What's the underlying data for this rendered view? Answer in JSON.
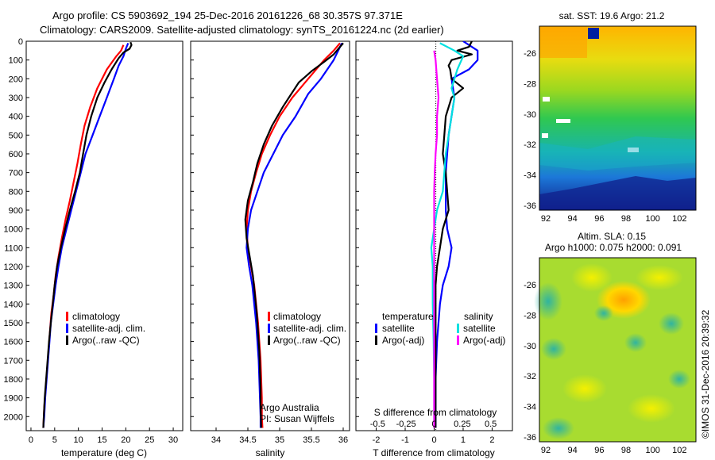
{
  "header": {
    "line1": "Argo profile: CS 5903692_194 25-Dec-2016 20161226_68 30.357S 97.371E",
    "line2": "Climatology: CARS2009. Satellite-adjusted climatology: synTS_20161224.nc (2d earlier)"
  },
  "colors": {
    "climatology": "#ff0000",
    "satellite": "#0000ff",
    "argo": "#000000",
    "salinity_satellite": "#00e0e0",
    "salinity_argo": "#ff00ff"
  },
  "chart_data": [
    {
      "type": "line",
      "name": "temperature",
      "xlabel": "temperature (deg C)",
      "xlim": [
        -1,
        32
      ],
      "xticks": [
        0,
        5,
        10,
        15,
        20,
        25,
        30
      ],
      "ylim": [
        2075,
        0
      ],
      "yticks": [
        0,
        100,
        200,
        300,
        400,
        500,
        600,
        700,
        800,
        900,
        1000,
        1100,
        1200,
        1300,
        1400,
        1500,
        1600,
        1700,
        1800,
        1900,
        2000
      ],
      "legend": [
        "climatology",
        "satellite-adj. clim.",
        "Argo(..raw -QC)"
      ],
      "series": [
        {
          "name": "climatology",
          "color": "climatology",
          "points": [
            [
              19.5,
              20
            ],
            [
              19,
              50
            ],
            [
              18,
              80
            ],
            [
              16,
              150
            ],
            [
              14,
              250
            ],
            [
              12.5,
              350
            ],
            [
              11.3,
              450
            ],
            [
              10.5,
              550
            ],
            [
              9.8,
              650
            ],
            [
              9,
              750
            ],
            [
              8.2,
              850
            ],
            [
              7.3,
              950
            ],
            [
              6.5,
              1050
            ],
            [
              5.8,
              1150
            ],
            [
              5.2,
              1250
            ],
            [
              4.8,
              1350
            ],
            [
              4.3,
              1450
            ],
            [
              4,
              1550
            ],
            [
              3.7,
              1650
            ],
            [
              3.4,
              1750
            ],
            [
              3.1,
              1850
            ],
            [
              2.8,
              1950
            ],
            [
              2.6,
              2060
            ]
          ]
        },
        {
          "name": "satellite-adj. clim.",
          "color": "satellite",
          "points": [
            [
              20.5,
              10
            ],
            [
              20,
              40
            ],
            [
              19.5,
              80
            ],
            [
              18.5,
              130
            ],
            [
              17.5,
              200
            ],
            [
              16,
              300
            ],
            [
              14.5,
              400
            ],
            [
              13,
              500
            ],
            [
              11.5,
              600
            ],
            [
              10.5,
              700
            ],
            [
              9.5,
              800
            ],
            [
              8.5,
              900
            ],
            [
              7.5,
              1000
            ],
            [
              6.5,
              1100
            ],
            [
              5.8,
              1200
            ],
            [
              5.2,
              1300
            ],
            [
              4.7,
              1400
            ],
            [
              4.2,
              1500
            ],
            [
              3.9,
              1600
            ],
            [
              3.6,
              1700
            ],
            [
              3.3,
              1800
            ],
            [
              3,
              1900
            ],
            [
              2.8,
              2000
            ],
            [
              2.6,
              2060
            ]
          ]
        },
        {
          "name": "Argo(..raw -QC)",
          "color": "argo",
          "points": [
            [
              21,
              5
            ],
            [
              21.2,
              20
            ],
            [
              20.8,
              40
            ],
            [
              19.5,
              60
            ],
            [
              18.5,
              90
            ],
            [
              17,
              150
            ],
            [
              15.5,
              220
            ],
            [
              14,
              300
            ],
            [
              12.7,
              400
            ],
            [
              11.7,
              500
            ],
            [
              11,
              600
            ],
            [
              10.3,
              700
            ],
            [
              9.3,
              800
            ],
            [
              8.2,
              900
            ],
            [
              7.2,
              1000
            ],
            [
              6.3,
              1100
            ],
            [
              5.5,
              1200
            ],
            [
              5,
              1300
            ],
            [
              4.6,
              1400
            ],
            [
              4.2,
              1500
            ],
            [
              3.8,
              1600
            ],
            [
              3.5,
              1700
            ],
            [
              3.2,
              1800
            ],
            [
              2.9,
              1900
            ],
            [
              2.7,
              2000
            ],
            [
              2.6,
              2060
            ]
          ]
        }
      ]
    },
    {
      "type": "line",
      "name": "salinity",
      "xlabel": "salinity",
      "xlim": [
        33.6,
        36.1
      ],
      "xticks": [
        34,
        34.5,
        35,
        35.5,
        36
      ],
      "xticklabels": [
        "34",
        "34.5",
        "35",
        "35.5",
        "36"
      ],
      "ylim": [
        2075,
        0
      ],
      "legend": [
        "climatology",
        "satellite-adj. clim.",
        "Argo(..raw -QC)"
      ],
      "annotation": [
        "Argo Australia",
        "PI: Susan Wijffels"
      ],
      "series": [
        {
          "name": "climatology",
          "color": "climatology",
          "points": [
            [
              35.95,
              10
            ],
            [
              35.85,
              50
            ],
            [
              35.7,
              100
            ],
            [
              35.45,
              200
            ],
            [
              35.2,
              300
            ],
            [
              35,
              400
            ],
            [
              34.85,
              500
            ],
            [
              34.72,
              600
            ],
            [
              34.63,
              700
            ],
            [
              34.55,
              800
            ],
            [
              34.5,
              900
            ],
            [
              34.48,
              1000
            ],
            [
              34.5,
              1100
            ],
            [
              34.55,
              1200
            ],
            [
              34.6,
              1300
            ],
            [
              34.63,
              1400
            ],
            [
              34.66,
              1500
            ],
            [
              34.68,
              1600
            ],
            [
              34.7,
              1700
            ],
            [
              34.71,
              1800
            ],
            [
              34.72,
              1900
            ],
            [
              34.72,
              2000
            ],
            [
              34.73,
              2060
            ]
          ]
        },
        {
          "name": "satellite-adj. clim.",
          "color": "satellite",
          "points": [
            [
              35.98,
              10
            ],
            [
              35.95,
              30
            ],
            [
              35.85,
              100
            ],
            [
              35.65,
              200
            ],
            [
              35.45,
              280
            ],
            [
              35.25,
              400
            ],
            [
              35.05,
              500
            ],
            [
              34.9,
              600
            ],
            [
              34.75,
              700
            ],
            [
              34.65,
              800
            ],
            [
              34.55,
              900
            ],
            [
              34.5,
              1000
            ],
            [
              34.48,
              1100
            ],
            [
              34.52,
              1200
            ],
            [
              34.57,
              1300
            ],
            [
              34.6,
              1400
            ],
            [
              34.63,
              1500
            ],
            [
              34.65,
              1600
            ],
            [
              34.67,
              1700
            ],
            [
              34.68,
              1800
            ],
            [
              34.69,
              1900
            ],
            [
              34.7,
              2000
            ],
            [
              34.7,
              2060
            ]
          ]
        },
        {
          "name": "Argo(..raw -QC)",
          "color": "argo",
          "points": [
            [
              36,
              10
            ],
            [
              35.95,
              30
            ],
            [
              35.85,
              70
            ],
            [
              35.7,
              110
            ],
            [
              35.5,
              160
            ],
            [
              35.3,
              220
            ],
            [
              35.05,
              350
            ],
            [
              34.88,
              450
            ],
            [
              34.75,
              550
            ],
            [
              34.65,
              650
            ],
            [
              34.58,
              750
            ],
            [
              34.5,
              850
            ],
            [
              34.46,
              950
            ],
            [
              34.48,
              1050
            ],
            [
              34.53,
              1150
            ],
            [
              34.58,
              1250
            ],
            [
              34.61,
              1350
            ],
            [
              34.64,
              1450
            ],
            [
              34.66,
              1550
            ],
            [
              34.68,
              1650
            ],
            [
              34.69,
              1750
            ],
            [
              34.7,
              1850
            ],
            [
              34.7,
              1950
            ],
            [
              34.71,
              2060
            ]
          ]
        }
      ]
    },
    {
      "type": "line",
      "name": "differences",
      "xlabel": "T difference from climatology",
      "top_label": "S difference from climatology",
      "xlim": [
        -2.7,
        2.7
      ],
      "xticks": [
        -2,
        -1,
        0,
        1,
        2
      ],
      "top_ticks": [
        "-0.5",
        "-0.25",
        "0",
        "0.25",
        "0.5"
      ],
      "ylim": [
        2075,
        0
      ],
      "legend_headers": [
        "temperature",
        "salinity"
      ],
      "legend": [
        "satellite",
        "Argo(-adj)",
        "satellite",
        "Argo(-adj)"
      ],
      "series": [
        {
          "name": "temperature satellite",
          "color": "satellite",
          "points": [
            [
              1,
              0
            ],
            [
              1.5,
              50
            ],
            [
              1.5,
              100
            ],
            [
              1.2,
              150
            ],
            [
              0.6,
              200
            ],
            [
              0.7,
              300
            ],
            [
              0.5,
              500
            ],
            [
              0.4,
              700
            ],
            [
              0.4,
              900
            ],
            [
              0.45,
              1000
            ],
            [
              0.6,
              1100
            ],
            [
              0.5,
              1200
            ],
            [
              0.3,
              1300
            ],
            [
              0.2,
              1400
            ],
            [
              0.1,
              1600
            ],
            [
              0.05,
              1800
            ],
            [
              0.05,
              2000
            ],
            [
              0.05,
              2060
            ]
          ]
        },
        {
          "name": "temperature Argo(-adj)",
          "color": "argo",
          "points": [
            [
              1.3,
              0
            ],
            [
              1.2,
              30
            ],
            [
              0.8,
              50
            ],
            [
              1.3,
              70
            ],
            [
              0.6,
              100
            ],
            [
              0.5,
              130
            ],
            [
              0.55,
              150
            ],
            [
              0.6,
              200
            ],
            [
              1,
              250
            ],
            [
              0.6,
              300
            ],
            [
              0.4,
              400
            ],
            [
              0.35,
              500
            ],
            [
              0.3,
              600
            ],
            [
              0.4,
              700
            ],
            [
              0.45,
              800
            ],
            [
              0.5,
              900
            ],
            [
              0.3,
              1000
            ],
            [
              0.2,
              1100
            ],
            [
              0.1,
              1200
            ],
            [
              0.05,
              1300
            ],
            [
              0.05,
              1500
            ],
            [
              0.05,
              1700
            ],
            [
              0.05,
              1900
            ],
            [
              0.05,
              2060
            ]
          ]
        },
        {
          "name": "salinity satellite",
          "color": "salinity_satellite",
          "points": [
            [
              0.2,
              10
            ],
            [
              0.7,
              50
            ],
            [
              1.0,
              80
            ],
            [
              0.8,
              150
            ],
            [
              0.6,
              250
            ],
            [
              0.7,
              300
            ],
            [
              0.6,
              400
            ],
            [
              0.4,
              600
            ],
            [
              0.3,
              800
            ],
            [
              0.1,
              900
            ],
            [
              0,
              1000
            ],
            [
              -0.1,
              1100
            ],
            [
              -0.05,
              1200
            ],
            [
              -0.05,
              1400
            ],
            [
              -0.02,
              1600
            ],
            [
              0,
              1800
            ],
            [
              0,
              2000
            ],
            [
              0,
              2060
            ]
          ]
        },
        {
          "name": "salinity Argo(-adj)",
          "color": "salinity_argo",
          "points": [
            [
              0,
              50
            ],
            [
              0.05,
              100
            ],
            [
              0.1,
              200
            ],
            [
              0.15,
              300
            ],
            [
              0.1,
              400
            ],
            [
              0.1,
              500
            ],
            [
              0.05,
              600
            ],
            [
              0.02,
              700
            ],
            [
              0,
              800
            ],
            [
              0,
              900
            ],
            [
              0,
              1000
            ],
            [
              0,
              1100
            ],
            [
              0,
              1200
            ],
            [
              0,
              1400
            ],
            [
              0,
              1600
            ],
            [
              0,
              1800
            ],
            [
              0,
              2000
            ],
            [
              0,
              2060
            ]
          ]
        }
      ]
    },
    {
      "type": "heatmap",
      "name": "sst-map",
      "title": "sat. SST: 19.6  Argo: 21.2",
      "xticks": [
        "92",
        "94",
        "96",
        "98",
        "100",
        "102"
      ],
      "yticks": [
        "-26",
        "-28",
        "-30",
        "-32",
        "-34",
        "-36"
      ]
    },
    {
      "type": "heatmap",
      "name": "sla-map",
      "title_lines": [
        "Altim. SLA: 0.15",
        "Argo h1000: 0.075  h2000: 0.091"
      ],
      "xticks": [
        "92",
        "94",
        "96",
        "98",
        "100",
        "102"
      ],
      "yticks": [
        "-26",
        "-28",
        "-30",
        "-32",
        "-34",
        "-36"
      ]
    }
  ],
  "footer": {
    "credit": "©IMOS 31-Dec-2016 20:39:32"
  }
}
